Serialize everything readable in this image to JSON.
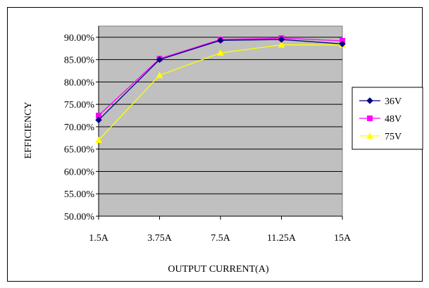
{
  "chart_data": {
    "type": "line",
    "title": "",
    "xlabel": "OUTPUT CURRENT(A)",
    "ylabel": "EFFICIENCY",
    "categories": [
      "1.5A",
      "3.75A",
      "7.5A",
      "11.25A",
      "15A"
    ],
    "y_ticks": [
      "50.00%",
      "55.00%",
      "60.00%",
      "65.00%",
      "70.00%",
      "75.00%",
      "80.00%",
      "85.00%",
      "90.00%"
    ],
    "ylim": [
      50,
      92.5
    ],
    "grid": true,
    "plot_background": "#c0c0c0",
    "legend_position": "right",
    "series": [
      {
        "name": "36V",
        "values": [
          71.5,
          85.0,
          89.3,
          89.5,
          88.5
        ],
        "color": "#000080",
        "marker": "diamond"
      },
      {
        "name": "48V",
        "values": [
          72.5,
          85.2,
          89.5,
          89.8,
          89.2
        ],
        "color": "#ff00ff",
        "marker": "square"
      },
      {
        "name": "75V",
        "values": [
          67.0,
          81.5,
          86.5,
          88.3,
          88.3
        ],
        "color": "#ffff00",
        "marker": "triangle"
      }
    ]
  }
}
